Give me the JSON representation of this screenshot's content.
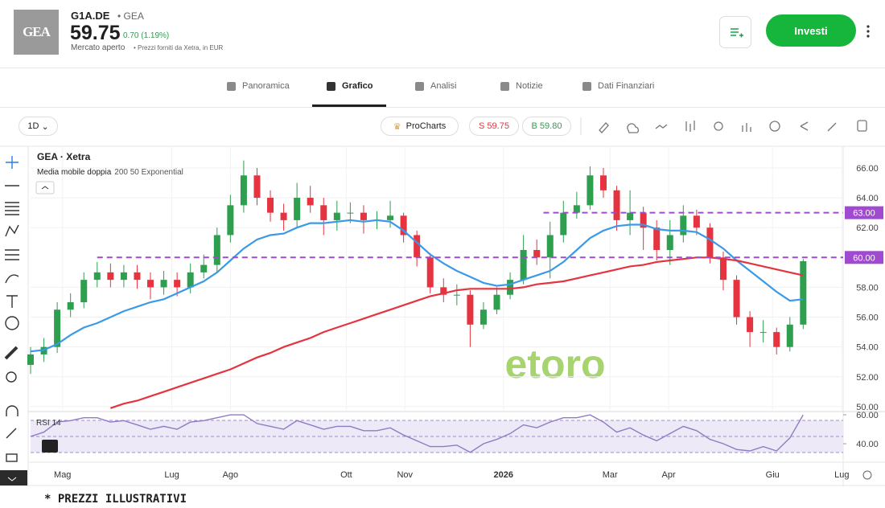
{
  "header": {
    "logo": "GEA",
    "ticker": "G1A.DE",
    "name": "GEA",
    "price": "59.75",
    "change": "0.70 (1.19%)",
    "status": "Mercato aperto",
    "source": "Prezzi forniti da Xetra, in EUR",
    "invest_button": "Investi"
  },
  "tabs": [
    "Panoramica",
    "Grafico",
    "Analisi",
    "Notizie",
    "Dati Finanziari"
  ],
  "active_tab": 1,
  "toolbar": {
    "interval": "1D",
    "procharts": "ProCharts",
    "sell": "S 59.75",
    "buy": "B 59.80"
  },
  "chart_data": {
    "type": "candlestick",
    "title": "GEA · Xetra",
    "indicator": "Media mobile doppia",
    "indicator_params": "200 50 Exponential",
    "up_color": "#2e9e4f",
    "down_color": "#e5333f",
    "open": [
      52.8,
      53.5,
      54.0,
      56.5,
      57.0,
      58.5,
      59.0,
      58.5,
      59.0,
      58.5,
      58.0,
      58.5,
      58.0,
      59.0,
      59.5,
      61.5,
      63.5,
      65.5,
      64.0,
      63.0,
      62.5,
      64.0,
      63.5,
      62.5,
      63.0,
      63.0,
      62.5,
      62.5,
      62.8,
      61.5,
      60.0,
      58.0,
      57.5,
      57.5,
      55.5,
      56.5,
      57.5,
      58.5,
      60.5,
      60.0,
      61.5,
      63.0,
      63.5,
      65.5,
      64.5,
      62.5,
      63.0,
      62.0,
      60.5,
      61.5,
      62.8,
      62.0,
      60.0,
      58.5,
      56.0,
      55.0,
      55.0,
      54.0,
      55.5
    ],
    "high": [
      54.0,
      54.6,
      57.0,
      57.6,
      59.0,
      59.7,
      59.6,
      59.5,
      59.5,
      59.0,
      59.1,
      59.0,
      59.6,
      60.2,
      62.0,
      64.2,
      66.5,
      66.0,
      64.5,
      63.6,
      65.0,
      64.8,
      64.0,
      63.8,
      63.7,
      63.5,
      63.1,
      63.8,
      63.0,
      61.8,
      60.3,
      58.6,
      58.2,
      57.8,
      57.0,
      58.0,
      59.0,
      61.5,
      61.2,
      62.4,
      63.8,
      64.4,
      66.1,
      66.0,
      64.8,
      64.5,
      63.4,
      62.5,
      62.5,
      63.5,
      63.2,
      62.3,
      60.4,
      58.8,
      56.4,
      55.8,
      55.3,
      56.0,
      59.9
    ],
    "low": [
      52.2,
      53.0,
      53.6,
      56.0,
      56.6,
      58.0,
      58.0,
      58.0,
      57.9,
      57.2,
      57.5,
      57.4,
      57.6,
      58.6,
      59.0,
      61.0,
      63.0,
      63.5,
      62.4,
      61.8,
      62.0,
      63.0,
      61.5,
      61.8,
      62.3,
      61.6,
      61.9,
      62.0,
      61.0,
      59.4,
      57.6,
      57.0,
      56.8,
      54.0,
      55.2,
      56.2,
      57.2,
      58.2,
      59.5,
      58.6,
      61.0,
      62.6,
      63.2,
      64.0,
      61.8,
      61.5,
      60.5,
      59.8,
      59.5,
      61.0,
      61.5,
      59.6,
      57.8,
      55.5,
      54.0,
      54.3,
      53.5,
      53.7,
      55.2
    ],
    "close": [
      53.5,
      54.0,
      56.5,
      57.0,
      58.5,
      59.0,
      58.5,
      59.0,
      58.5,
      58.0,
      58.5,
      58.0,
      59.0,
      59.5,
      61.5,
      63.5,
      65.5,
      64.0,
      63.0,
      62.5,
      64.0,
      63.5,
      62.5,
      63.0,
      63.0,
      62.5,
      62.5,
      62.8,
      61.5,
      60.0,
      58.0,
      57.5,
      57.5,
      55.5,
      56.5,
      57.5,
      58.5,
      60.5,
      60.0,
      61.5,
      63.0,
      63.5,
      65.5,
      64.5,
      62.5,
      63.0,
      62.0,
      60.5,
      61.5,
      62.8,
      62.0,
      60.0,
      58.5,
      56.0,
      55.0,
      55.0,
      54.0,
      55.5,
      59.75
    ],
    "lines": [
      {
        "color": "#3a9ae8",
        "values": [
          53.7,
          53.8,
          54.2,
          54.8,
          55.3,
          55.6,
          56.0,
          56.4,
          56.7,
          57.0,
          57.2,
          57.6,
          58.0,
          58.4,
          59.0,
          59.8,
          60.6,
          61.2,
          61.5,
          61.6,
          62.0,
          62.3,
          62.3,
          62.4,
          62.5,
          62.4,
          62.5,
          62.4,
          61.8,
          61.0,
          60.2,
          59.6,
          59.1,
          58.7,
          58.3,
          58.1,
          58.2,
          58.5,
          58.8,
          59.1,
          59.7,
          60.5,
          61.3,
          61.8,
          62.1,
          62.2,
          62.2,
          61.9,
          61.8,
          61.8,
          61.7,
          61.2,
          60.6,
          59.8,
          59.1,
          58.4,
          57.7,
          57.1,
          57.2
        ]
      },
      {
        "color": "#e5333f",
        "values": [
          null,
          null,
          null,
          null,
          null,
          null,
          49.9,
          50.2,
          50.4,
          50.7,
          51.0,
          51.3,
          51.6,
          51.9,
          52.2,
          52.5,
          52.9,
          53.3,
          53.6,
          54.0,
          54.3,
          54.6,
          55.0,
          55.3,
          55.6,
          55.9,
          56.2,
          56.5,
          56.8,
          57.1,
          57.4,
          57.6,
          57.8,
          57.9,
          57.9,
          57.9,
          57.9,
          58.0,
          58.2,
          58.3,
          58.4,
          58.6,
          58.8,
          59.0,
          59.2,
          59.4,
          59.5,
          59.7,
          59.8,
          59.9,
          60.0,
          60.0,
          59.9,
          59.8,
          59.6,
          59.4,
          59.2,
          59.0,
          58.8
        ]
      }
    ],
    "levels": [
      {
        "value": 63,
        "label": "63.00",
        "from": 38.5
      },
      {
        "value": 60,
        "label": "60.00",
        "from": 5
      }
    ],
    "level_color": "#a04ad0",
    "ylim": [
      49.78,
      67.29
    ],
    "yticks": [
      {
        "value": 50,
        "label": "50.00"
      },
      {
        "value": 52,
        "label": "52.00"
      },
      {
        "value": 54,
        "label": "54.00"
      },
      {
        "value": 56,
        "label": "56.00"
      },
      {
        "value": 58,
        "label": "58.00"
      },
      {
        "value": 62,
        "label": "62.00"
      },
      {
        "value": 64,
        "label": "64.00"
      },
      {
        "value": 66,
        "label": "66.00"
      }
    ],
    "xlim": [
      0,
      61
    ],
    "xticks": [
      {
        "value": 2.4,
        "label": "Mag"
      },
      {
        "value": 10.6,
        "label": "Lug"
      },
      {
        "value": 15.0,
        "label": "Ago"
      },
      {
        "value": 23.7,
        "label": "Ott"
      },
      {
        "value": 28.1,
        "label": "Nov"
      },
      {
        "value": 35.5,
        "label": "2026"
      },
      {
        "value": 43.5,
        "label": "Mar"
      },
      {
        "value": 47.9,
        "label": "Apr"
      },
      {
        "value": 55.7,
        "label": "Giu"
      },
      {
        "value": 60.9,
        "label": "Lug"
      }
    ],
    "rsi": {
      "label": "RSI 14",
      "color": "#8e7cc3",
      "values": [
        45,
        48,
        55,
        56,
        58,
        58,
        55,
        56,
        53,
        50,
        52,
        50,
        55,
        56,
        58,
        60,
        60,
        54,
        52,
        50,
        56,
        53,
        50,
        52,
        52,
        49,
        49,
        51,
        46,
        42,
        38,
        38,
        39,
        34,
        40,
        43,
        47,
        53,
        51,
        55,
        58,
        58,
        60,
        55,
        48,
        51,
        46,
        42,
        47,
        52,
        49,
        43,
        40,
        36,
        35,
        38,
        35,
        44,
        60
      ],
      "ylim": [
        28.9,
        61.7
      ],
      "yticks": [
        {
          "value": 40,
          "label": "40.00"
        },
        {
          "value": 60,
          "label": "60.00"
        }
      ]
    },
    "watermark": "etoro"
  },
  "footer": "* PREZZI ILLUSTRATIVI"
}
